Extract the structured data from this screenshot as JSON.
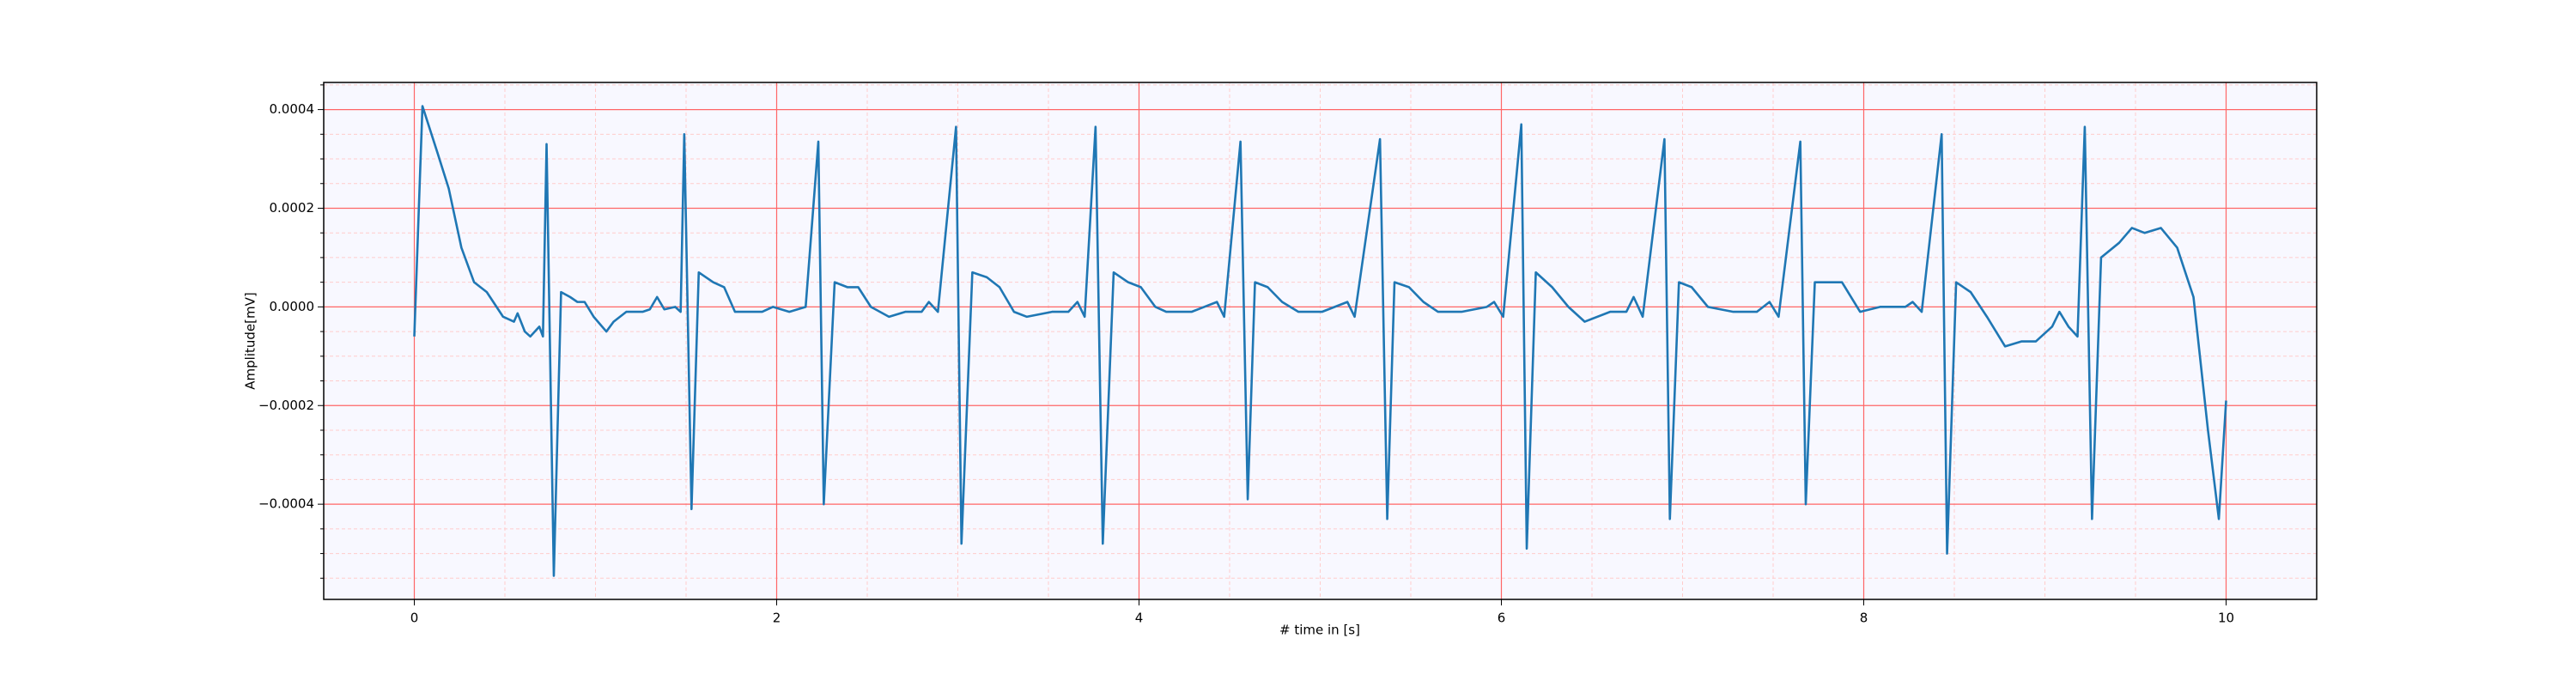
{
  "chart_data": {
    "type": "line",
    "xlabel": "# time in [s]",
    "ylabel": "Amplitude[mV]",
    "color": "#1f77b4",
    "background": "#f8f8ff",
    "grid": true,
    "major_grid_color": "#ff6666",
    "minor_grid_color": "#ffcccc",
    "xlim": [
      -0.5,
      10.5
    ],
    "ylim": [
      -0.000593,
      0.000455
    ],
    "xticks": [
      0,
      2,
      4,
      6,
      8,
      10
    ],
    "yticks": [
      {
        "value": -0.0004,
        "label": "−0.0004"
      },
      {
        "value": -0.0002,
        "label": "−0.0002"
      },
      {
        "value": 0,
        "label": "0.0000"
      },
      {
        "value": 0.0002,
        "label": "0.0002"
      },
      {
        "value": 0.0004,
        "label": "0.0004"
      }
    ],
    "xminorticks": [
      -0.5,
      0.5,
      1,
      1.5,
      2.5,
      3,
      3.5,
      4.5,
      5,
      5.5,
      6.5,
      7,
      7.5,
      8.5,
      9,
      9.5,
      10.5
    ],
    "yminorticks": [
      -0.00055,
      -0.0005,
      -0.00045,
      -0.00035,
      -0.0003,
      -0.00025,
      -0.00015,
      -0.0001,
      -5e-05,
      5e-05,
      0.0001,
      0.00015,
      0.00025,
      0.0003,
      0.00035,
      0.00045
    ],
    "x": [
      0,
      0.045,
      0.13,
      0.19,
      0.26,
      0.33,
      0.4,
      0.49,
      0.55,
      0.57,
      0.61,
      0.64,
      0.69,
      0.71,
      0.73,
      0.77,
      0.81,
      0.86,
      0.9,
      0.94,
      0.99,
      1.06,
      1.1,
      1.17,
      1.26,
      1.3,
      1.34,
      1.38,
      1.44,
      1.47,
      1.49,
      1.53,
      1.57,
      1.65,
      1.71,
      1.77,
      1.85,
      1.92,
      1.98,
      2.07,
      2.16,
      2.23,
      2.26,
      2.32,
      2.39,
      2.45,
      2.52,
      2.62,
      2.71,
      2.8,
      2.84,
      2.89,
      2.99,
      3.02,
      3.08,
      3.16,
      3.23,
      3.31,
      3.38,
      3.52,
      3.61,
      3.66,
      3.7,
      3.76,
      3.8,
      3.86,
      3.94,
      4.01,
      4.09,
      4.15,
      4.29,
      4.43,
      4.47,
      4.56,
      4.6,
      4.64,
      4.71,
      4.79,
      4.88,
      5.01,
      5.15,
      5.19,
      5.33,
      5.37,
      5.41,
      5.49,
      5.57,
      5.65,
      5.78,
      5.92,
      5.96,
      6.01,
      6.11,
      6.14,
      6.19,
      6.28,
      6.37,
      6.46,
      6.6,
      6.69,
      6.73,
      6.78,
      6.9,
      6.93,
      6.98,
      7.05,
      7.14,
      7.28,
      7.41,
      7.48,
      7.53,
      7.65,
      7.68,
      7.73,
      7.82,
      7.88,
      7.98,
      8.09,
      8.23,
      8.27,
      8.32,
      8.43,
      8.46,
      8.51,
      8.59,
      8.68,
      8.78,
      8.87,
      8.95,
      9.04,
      9.08,
      9.13,
      9.18,
      9.22,
      9.26,
      9.31,
      9.41,
      9.48,
      9.55,
      9.64,
      9.73,
      9.82,
      9.9,
      9.96,
      10.0
    ],
    "values": [
      -6e-05,
      0.000407,
      0.00031,
      0.00024,
      0.00012,
      5e-05,
      3e-05,
      -2e-05,
      -3e-05,
      -1.3e-05,
      -5e-05,
      -6e-05,
      -4e-05,
      -6e-05,
      0.00033,
      -0.000545,
      3e-05,
      2e-05,
      1e-05,
      1e-05,
      -2e-05,
      -5e-05,
      -3e-05,
      -1e-05,
      -1e-05,
      -5e-06,
      2e-05,
      -5e-06,
      0,
      -1e-05,
      0.00035,
      -0.00041,
      7e-05,
      5e-05,
      4e-05,
      -1e-05,
      -1e-05,
      -1e-05,
      0,
      -1e-05,
      0,
      0.000335,
      -0.0004,
      5e-05,
      4e-05,
      4e-05,
      0,
      -2e-05,
      -1e-05,
      -1e-05,
      1e-05,
      -1e-05,
      0.000365,
      -0.00048,
      7e-05,
      6e-05,
      4e-05,
      -1e-05,
      -2e-05,
      -1e-05,
      -1e-05,
      1e-05,
      -2e-05,
      0.000365,
      -0.00048,
      7e-05,
      5e-05,
      4e-05,
      0,
      -1e-05,
      -1e-05,
      1e-05,
      -2e-05,
      0.000335,
      -0.00039,
      5e-05,
      4e-05,
      1e-05,
      -1e-05,
      -1e-05,
      1e-05,
      -2e-05,
      0.00034,
      -0.00043,
      5e-05,
      4e-05,
      1e-05,
      -1e-05,
      -1e-05,
      0,
      1e-05,
      -2e-05,
      0.00037,
      -0.00049,
      7e-05,
      4e-05,
      0,
      -3e-05,
      -1e-05,
      -1e-05,
      2e-05,
      -2e-05,
      0.00034,
      -0.00043,
      5e-05,
      4e-05,
      0,
      -1e-05,
      -1e-05,
      1e-05,
      -2e-05,
      0.000335,
      -0.0004,
      5e-05,
      5e-05,
      5e-05,
      -1e-05,
      0,
      0,
      1e-05,
      -1e-05,
      0.00035,
      -0.0005,
      5e-05,
      3e-05,
      -2e-05,
      -8e-05,
      -7e-05,
      -7e-05,
      -4e-05,
      -1e-05,
      -4e-05,
      -6e-05,
      0.000365,
      -0.00043,
      0.0001,
      0.00013,
      0.00016,
      0.00015,
      0.00016,
      0.00012,
      2e-05,
      -0.00025,
      -0.00043,
      -0.00019
    ]
  }
}
